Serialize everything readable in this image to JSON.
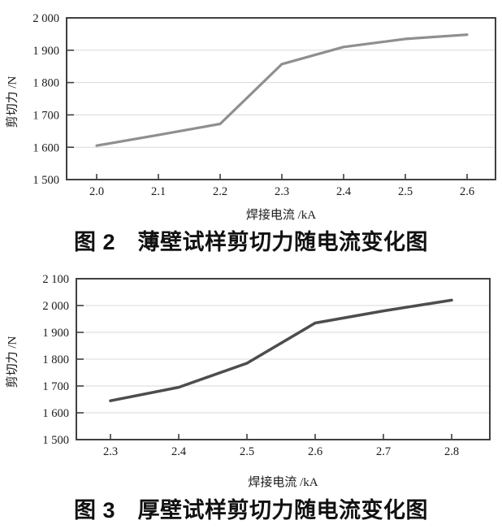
{
  "page": {
    "background": "#ffffff",
    "text_color": "#1a1a1a",
    "frame_color": "#404040",
    "grid_color": "#d9d9d9"
  },
  "chart_data": [
    {
      "type": "line",
      "title": "图 2　薄壁试样剪切力随电流变化图",
      "xlabel": "焊接电流 /kA",
      "ylabel": "剪切力 /N",
      "x": [
        2.0,
        2.1,
        2.2,
        2.3,
        2.4,
        2.5,
        2.6
      ],
      "values": [
        1605,
        1638,
        1672,
        1857,
        1910,
        1935,
        1948
      ],
      "x_tick_labels": [
        "2.0",
        "2.1",
        "2.2",
        "2.3",
        "2.4",
        "2.5",
        "2.6"
      ],
      "y_tick_labels": [
        "1 500",
        "1 600",
        "1 700",
        "1 800",
        "1 900",
        "2 000"
      ],
      "ylim": [
        1500,
        2000
      ],
      "y_step": 100,
      "grid": true,
      "legend": "none",
      "line_color": "#8f8f8f",
      "line_width": 3.2
    },
    {
      "type": "line",
      "title": "图 3　厚壁试样剪切力随电流变化图",
      "xlabel": "焊接电流 /kA",
      "ylabel": "剪切力 /N",
      "x": [
        2.3,
        2.4,
        2.5,
        2.6,
        2.7,
        2.8
      ],
      "values": [
        1645,
        1695,
        1785,
        1935,
        1980,
        2020
      ],
      "x_tick_labels": [
        "2.3",
        "2.4",
        "2.5",
        "2.6",
        "2.7",
        "2.8"
      ],
      "y_tick_labels": [
        "1 500",
        "1 600",
        "1 700",
        "1 800",
        "1 900",
        "2 000",
        "2 100"
      ],
      "ylim": [
        1500,
        2100
      ],
      "y_step": 100,
      "grid": true,
      "legend": "none",
      "line_color": "#4d4d4d",
      "line_width": 3.5
    }
  ]
}
